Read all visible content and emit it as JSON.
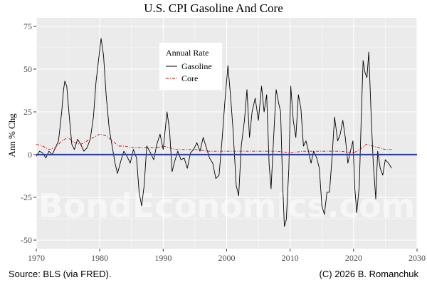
{
  "chart_data": {
    "type": "line",
    "title": "U.S. CPI Gasoline And Core",
    "xlabel": "",
    "ylabel": "Ann % Chg",
    "xlim": [
      1970,
      2030
    ],
    "ylim": [
      -55,
      80
    ],
    "x_ticks": [
      1970,
      1980,
      1990,
      2000,
      2010,
      2020,
      2030
    ],
    "y_ticks": [
      75,
      50,
      25,
      0,
      -25,
      -50
    ],
    "grid": true,
    "legend": {
      "title": "Annual Rate",
      "placement": "top-center"
    },
    "reference_line": {
      "y": 0,
      "color": "#2e3fa0"
    },
    "series": [
      {
        "name": "Gasoline",
        "color": "#000000",
        "style": "solid",
        "points": [
          [
            1970.0,
            -1
          ],
          [
            1970.5,
            2
          ],
          [
            1971.0,
            1
          ],
          [
            1971.5,
            -2
          ],
          [
            1972.0,
            2
          ],
          [
            1972.5,
            0
          ],
          [
            1973.0,
            4
          ],
          [
            1973.5,
            8
          ],
          [
            1974.0,
            25
          ],
          [
            1974.3,
            38
          ],
          [
            1974.5,
            43
          ],
          [
            1974.8,
            40
          ],
          [
            1975.2,
            22
          ],
          [
            1975.6,
            6
          ],
          [
            1976.0,
            3
          ],
          [
            1976.5,
            9
          ],
          [
            1977.0,
            6
          ],
          [
            1977.5,
            2
          ],
          [
            1978.0,
            4
          ],
          [
            1978.5,
            9
          ],
          [
            1979.0,
            22
          ],
          [
            1979.4,
            42
          ],
          [
            1979.8,
            55
          ],
          [
            1980.2,
            68
          ],
          [
            1980.6,
            58
          ],
          [
            1981.0,
            35
          ],
          [
            1981.5,
            15
          ],
          [
            1982.0,
            4
          ],
          [
            1982.4,
            -5
          ],
          [
            1982.8,
            -11
          ],
          [
            1983.3,
            -4
          ],
          [
            1983.8,
            2
          ],
          [
            1984.3,
            -1
          ],
          [
            1984.8,
            -5
          ],
          [
            1985.3,
            3
          ],
          [
            1985.8,
            -2
          ],
          [
            1986.2,
            -22
          ],
          [
            1986.6,
            -30
          ],
          [
            1987.0,
            -18
          ],
          [
            1987.4,
            5
          ],
          [
            1988.0,
            1
          ],
          [
            1988.5,
            -3
          ],
          [
            1989.0,
            6
          ],
          [
            1989.5,
            12
          ],
          [
            1990.0,
            3
          ],
          [
            1990.6,
            25
          ],
          [
            1991.0,
            14
          ],
          [
            1991.4,
            -10
          ],
          [
            1991.8,
            -4
          ],
          [
            1992.3,
            2
          ],
          [
            1992.8,
            -3
          ],
          [
            1993.3,
            -2
          ],
          [
            1993.8,
            -8
          ],
          [
            1994.3,
            1
          ],
          [
            1994.8,
            3
          ],
          [
            1995.3,
            7
          ],
          [
            1995.8,
            2
          ],
          [
            1996.3,
            10
          ],
          [
            1996.8,
            4
          ],
          [
            1997.3,
            -2
          ],
          [
            1997.8,
            -5
          ],
          [
            1998.3,
            -14
          ],
          [
            1998.8,
            -12
          ],
          [
            1999.3,
            10
          ],
          [
            1999.7,
            30
          ],
          [
            2000.2,
            52
          ],
          [
            2000.6,
            35
          ],
          [
            2001.0,
            15
          ],
          [
            2001.5,
            -18
          ],
          [
            2001.9,
            -24
          ],
          [
            2002.3,
            5
          ],
          [
            2002.8,
            20
          ],
          [
            2003.2,
            38
          ],
          [
            2003.6,
            10
          ],
          [
            2004.0,
            25
          ],
          [
            2004.5,
            33
          ],
          [
            2005.0,
            20
          ],
          [
            2005.5,
            40
          ],
          [
            2005.9,
            25
          ],
          [
            2006.3,
            35
          ],
          [
            2006.7,
            -6
          ],
          [
            2007.0,
            -20
          ],
          [
            2007.4,
            10
          ],
          [
            2007.8,
            38
          ],
          [
            2008.2,
            30
          ],
          [
            2008.5,
            25
          ],
          [
            2008.8,
            -15
          ],
          [
            2009.1,
            -42
          ],
          [
            2009.4,
            -38
          ],
          [
            2009.8,
            -8
          ],
          [
            2010.1,
            40
          ],
          [
            2010.5,
            20
          ],
          [
            2010.9,
            10
          ],
          [
            2011.3,
            35
          ],
          [
            2011.7,
            27
          ],
          [
            2012.1,
            5
          ],
          [
            2012.5,
            8
          ],
          [
            2012.9,
            2
          ],
          [
            2013.3,
            -5
          ],
          [
            2013.7,
            2
          ],
          [
            2014.2,
            -2
          ],
          [
            2014.6,
            -8
          ],
          [
            2015.0,
            -30
          ],
          [
            2015.4,
            -35
          ],
          [
            2015.8,
            -22
          ],
          [
            2016.2,
            -22
          ],
          [
            2016.6,
            -2
          ],
          [
            2017.0,
            22
          ],
          [
            2017.5,
            8
          ],
          [
            2017.9,
            12
          ],
          [
            2018.3,
            20
          ],
          [
            2018.7,
            10
          ],
          [
            2019.1,
            -5
          ],
          [
            2019.5,
            2
          ],
          [
            2019.9,
            8
          ],
          [
            2020.2,
            -20
          ],
          [
            2020.5,
            -34
          ],
          [
            2020.9,
            -18
          ],
          [
            2021.2,
            20
          ],
          [
            2021.5,
            55
          ],
          [
            2021.8,
            48
          ],
          [
            2022.1,
            45
          ],
          [
            2022.4,
            60
          ],
          [
            2022.8,
            20
          ],
          [
            2023.1,
            -5
          ],
          [
            2023.5,
            -26
          ],
          [
            2023.8,
            2
          ],
          [
            2024.2,
            -8
          ],
          [
            2024.6,
            -12
          ],
          [
            2025.0,
            -3
          ],
          [
            2025.5,
            -5
          ],
          [
            2026.0,
            -8
          ]
        ]
      },
      {
        "name": "Core",
        "color": "#cc0000",
        "style": "dashdot",
        "points": [
          [
            1970.0,
            6
          ],
          [
            1971.0,
            5
          ],
          [
            1972.0,
            3
          ],
          [
            1973.0,
            4
          ],
          [
            1974.0,
            8
          ],
          [
            1975.0,
            10
          ],
          [
            1976.0,
            7
          ],
          [
            1977.0,
            6
          ],
          [
            1978.0,
            8
          ],
          [
            1979.0,
            10
          ],
          [
            1980.0,
            12
          ],
          [
            1981.0,
            11
          ],
          [
            1982.0,
            8
          ],
          [
            1983.0,
            5
          ],
          [
            1984.0,
            5
          ],
          [
            1985.0,
            4
          ],
          [
            1986.0,
            4
          ],
          [
            1987.0,
            4
          ],
          [
            1988.0,
            4
          ],
          [
            1989.0,
            4
          ],
          [
            1990.0,
            5
          ],
          [
            1991.0,
            4
          ],
          [
            1992.0,
            3
          ],
          [
            1993.0,
            3
          ],
          [
            1995.0,
            3
          ],
          [
            1997.0,
            2
          ],
          [
            2000.0,
            2
          ],
          [
            2002.0,
            2
          ],
          [
            2004.0,
            2
          ],
          [
            2006.0,
            2
          ],
          [
            2008.0,
            2
          ],
          [
            2010.0,
            1
          ],
          [
            2012.0,
            2
          ],
          [
            2014.0,
            2
          ],
          [
            2016.0,
            2
          ],
          [
            2018.0,
            2
          ],
          [
            2020.0,
            1
          ],
          [
            2021.0,
            3
          ],
          [
            2022.0,
            6
          ],
          [
            2023.0,
            5
          ],
          [
            2024.0,
            4
          ],
          [
            2025.0,
            3
          ],
          [
            2026.0,
            3
          ]
        ]
      }
    ]
  },
  "footer": {
    "source": "Source: BLS (via FRED).",
    "copyright": "(C) 2026 B. Romanchuk"
  },
  "watermark": "BondEconomics.com",
  "colors": {
    "panel_background": "#ebebeb",
    "grid": "#ffffff",
    "zero_line": "#2e3fa0"
  }
}
